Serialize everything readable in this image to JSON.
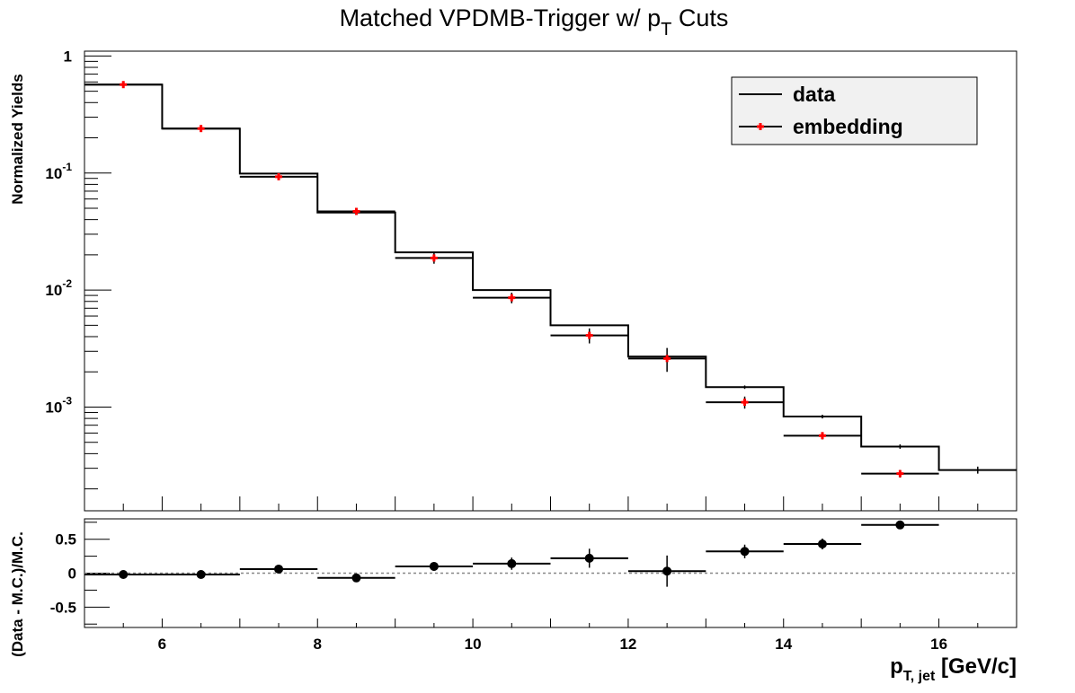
{
  "chart_data": [
    {
      "type": "step",
      "title_main": "Matched VPDMB-Trigger w/ p",
      "title_sub": "T",
      "title_tail": " Cuts",
      "ylabel": "Normalized Yields",
      "yscale": "log",
      "xlim": [
        5,
        17
      ],
      "ylim": [
        0.00013,
        1.1
      ],
      "xticks": [
        6,
        8,
        10,
        12,
        14,
        16
      ],
      "yticks": [
        {
          "value": 1,
          "base": "1",
          "exp": ""
        },
        {
          "value": 0.1,
          "base": "10",
          "exp": "-1"
        },
        {
          "value": 0.01,
          "base": "10",
          "exp": "-2"
        },
        {
          "value": 0.001,
          "base": "10",
          "exp": "-3"
        }
      ],
      "legend": {
        "position": "top-right",
        "entries": [
          {
            "label": "data",
            "style": "line"
          },
          {
            "label": "embedding",
            "style": "marker"
          }
        ]
      },
      "bin_edges": [
        5,
        6,
        7,
        8,
        9,
        10,
        11,
        12,
        13,
        14,
        15,
        16,
        17
      ],
      "series": [
        {
          "name": "data",
          "color": "#000000",
          "values": [
            0.57,
            0.24,
            0.099,
            0.046,
            0.021,
            0.01,
            0.005,
            0.0027,
            0.00148,
            0.00083,
            0.00046,
            0.00029
          ],
          "errors": [
            0,
            0,
            0,
            0,
            0,
            0,
            0,
            0,
            5e-05,
            3e-05,
            2e-05,
            2e-05
          ]
        },
        {
          "name": "embedding",
          "color": "#ff0000",
          "values": [
            0.57,
            0.24,
            0.093,
            0.047,
            0.0188,
            0.0086,
            0.0041,
            0.0026,
            0.0011,
            0.00057,
            0.00027,
            null
          ],
          "errors": [
            0.01,
            0.005,
            0.003,
            0.002,
            0.002,
            0.0009,
            0.0006,
            0.0006,
            0.00013,
            4e-05,
            2e-05,
            null
          ]
        }
      ]
    },
    {
      "type": "scatter",
      "ylabel": "(Data - M.C.)/M.C.",
      "xlabel_main": "p",
      "xlabel_sub": "T, jet",
      "xlabel_tail": " [GeV/c]",
      "xlim": [
        5,
        17
      ],
      "ylim": [
        -0.8,
        0.8
      ],
      "xticks": [
        6,
        8,
        10,
        12,
        14,
        16
      ],
      "yticks": [
        {
          "value": 0.5,
          "label": "0.5"
        },
        {
          "value": 0,
          "label": "0"
        },
        {
          "value": -0.5,
          "label": "-0.5"
        }
      ],
      "reference_line": 0,
      "bin_edges": [
        5,
        6,
        7,
        8,
        9,
        10,
        11,
        12,
        13,
        14,
        15,
        16,
        17
      ],
      "series": [
        {
          "name": "",
          "color": "#000000",
          "x": [
            5.5,
            6.5,
            7.5,
            8.5,
            9.5,
            10.5,
            11.5,
            12.5,
            13.5,
            14.5,
            15.5
          ],
          "y": [
            -0.02,
            -0.02,
            0.06,
            -0.07,
            0.1,
            0.14,
            0.22,
            0.03,
            0.32,
            0.43,
            0.71
          ],
          "errors": [
            0.02,
            0.02,
            0.03,
            0.04,
            0.06,
            0.09,
            0.14,
            0.23,
            0.1,
            0.08,
            0.06
          ]
        }
      ]
    }
  ]
}
